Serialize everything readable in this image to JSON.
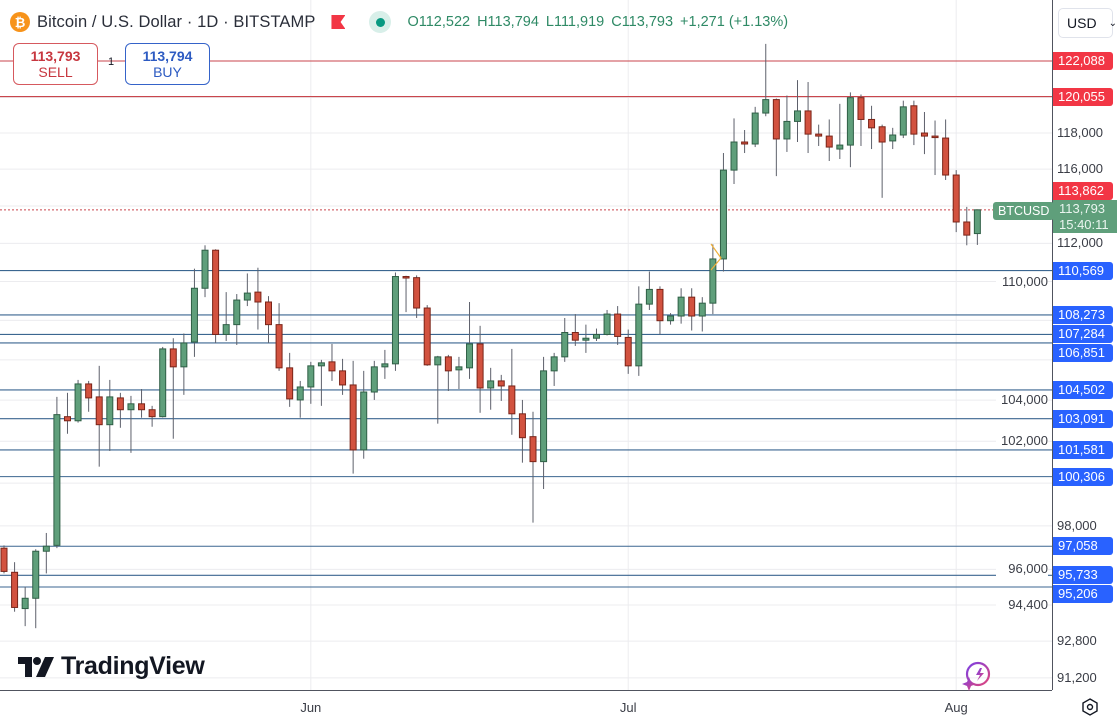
{
  "header": {
    "coin_icon": "bitcoin-icon",
    "title": "Bitcoin / U.S. Dollar · 1D · BITSTAMP",
    "open": "O112,522",
    "high": "H113,794",
    "low": "L111,919",
    "close": "C113,793",
    "change": "+1,271 (+1.13%)"
  },
  "trade": {
    "sell_price": "113,793",
    "sell_label": "SELL",
    "buy_price": "113,794",
    "buy_label": "BUY",
    "quantity": "1"
  },
  "currency": "USD",
  "watermark": "TradingView",
  "colors": {
    "up": "#5f9f7b",
    "up_border": "#2f5f46",
    "down": "#d2523f",
    "down_border": "#7a2418",
    "resistance": "#f23645",
    "resistance_line": "#c9464c",
    "support": "#2962ff",
    "support_line": "#3b6690",
    "current": "#5f9f7b"
  },
  "chart_data": {
    "type": "candlestick",
    "symbol": "BTCUSD",
    "interval": "1D",
    "ohlc": [
      [
        96970,
        97100,
        95820,
        95910
      ],
      [
        95870,
        96330,
        94100,
        94290
      ],
      [
        94240,
        95210,
        93460,
        94700
      ],
      [
        94700,
        96920,
        93370,
        96830
      ],
      [
        96830,
        97670,
        95820,
        97060
      ],
      [
        97100,
        104160,
        96970,
        103290
      ],
      [
        103190,
        104360,
        102360,
        102990
      ],
      [
        102990,
        105000,
        102900,
        104800
      ],
      [
        104800,
        104950,
        103430,
        104110
      ],
      [
        104160,
        105700,
        100780,
        102800
      ],
      [
        102800,
        105000,
        101530,
        104160
      ],
      [
        104110,
        104360,
        102650,
        103530
      ],
      [
        103530,
        104210,
        101440,
        103820
      ],
      [
        103820,
        104550,
        103140,
        103530
      ],
      [
        103530,
        103720,
        102700,
        103190
      ],
      [
        103190,
        106650,
        103150,
        106550
      ],
      [
        106550,
        107090,
        102120,
        105650
      ],
      [
        105650,
        107330,
        104260,
        106850
      ],
      [
        106900,
        110670,
        106150,
        109650
      ],
      [
        109650,
        111900,
        109190,
        111640
      ],
      [
        111640,
        111690,
        106850,
        107280
      ],
      [
        107280,
        109450,
        106950,
        107780
      ],
      [
        107780,
        109350,
        106750,
        109040
      ],
      [
        109040,
        110420,
        108730,
        109400
      ],
      [
        109450,
        110720,
        107530,
        108940
      ],
      [
        108940,
        109240,
        106850,
        107780
      ],
      [
        107780,
        108880,
        105450,
        105600
      ],
      [
        105600,
        106350,
        103670,
        104060
      ],
      [
        104010,
        104950,
        103140,
        104650
      ],
      [
        104650,
        105900,
        103820,
        105700
      ],
      [
        105700,
        106000,
        103720,
        105850
      ],
      [
        105900,
        106800,
        104950,
        105450
      ],
      [
        105450,
        106050,
        104260,
        104750
      ],
      [
        104750,
        105950,
        100450,
        101580
      ],
      [
        101580,
        105450,
        101160,
        104400
      ],
      [
        104400,
        105950,
        104010,
        105650
      ],
      [
        105650,
        106500,
        105050,
        105800
      ],
      [
        105800,
        110470,
        105450,
        110260
      ],
      [
        110260,
        110300,
        108420,
        110200
      ],
      [
        110200,
        110320,
        108120,
        108630
      ],
      [
        108630,
        108780,
        105700,
        105750
      ],
      [
        105750,
        106200,
        102850,
        106150
      ],
      [
        106150,
        106250,
        104450,
        105450
      ],
      [
        105500,
        106150,
        104550,
        105650
      ],
      [
        105600,
        108940,
        105050,
        106800
      ],
      [
        106800,
        107720,
        103380,
        104600
      ],
      [
        104600,
        105600,
        103530,
        104950
      ],
      [
        104950,
        105250,
        103960,
        104700
      ],
      [
        104700,
        106550,
        102310,
        103330
      ],
      [
        103330,
        104010,
        100970,
        102170
      ],
      [
        102220,
        103430,
        98150,
        101020
      ],
      [
        101020,
        106150,
        99720,
        105450
      ],
      [
        105450,
        106350,
        104700,
        106150
      ],
      [
        106150,
        108120,
        105900,
        107380
      ],
      [
        107380,
        108320,
        106700,
        106990
      ],
      [
        106990,
        107780,
        106350,
        107090
      ],
      [
        107090,
        107580,
        106950,
        107280
      ],
      [
        107280,
        108530,
        107230,
        108320
      ],
      [
        108320,
        108730,
        106750,
        107180
      ],
      [
        107130,
        107530,
        105300,
        105700
      ],
      [
        105700,
        109750,
        105200,
        108830
      ],
      [
        108830,
        110520,
        108530,
        109590
      ],
      [
        109590,
        109750,
        107280,
        107980
      ],
      [
        107980,
        108370,
        107780,
        108220
      ],
      [
        108220,
        109650,
        107830,
        109190
      ],
      [
        109190,
        109650,
        107480,
        108220
      ],
      [
        108220,
        109190,
        107430,
        108880
      ],
      [
        108880,
        111950,
        108320,
        111180
      ],
      [
        111180,
        116890,
        110520,
        115950
      ],
      [
        115950,
        118820,
        115190,
        117500
      ],
      [
        117500,
        118170,
        116890,
        117390
      ],
      [
        117390,
        119470,
        117220,
        119120
      ],
      [
        119120,
        123080,
        118940,
        119880
      ],
      [
        119880,
        119940,
        115620,
        117670
      ],
      [
        117670,
        120110,
        116950,
        118650
      ],
      [
        118650,
        120990,
        117500,
        119240
      ],
      [
        119240,
        120880,
        116890,
        117940
      ],
      [
        117940,
        118470,
        117280,
        117830
      ],
      [
        117830,
        118760,
        116450,
        117220
      ],
      [
        117110,
        119640,
        116560,
        117330
      ],
      [
        117330,
        120290,
        116110,
        119990
      ],
      [
        119990,
        120170,
        117280,
        118760
      ],
      [
        118760,
        119530,
        117110,
        118290
      ],
      [
        118350,
        118470,
        114440,
        117500
      ],
      [
        117560,
        118290,
        117110,
        117890
      ],
      [
        117890,
        119820,
        117720,
        119470
      ],
      [
        119530,
        119820,
        117330,
        117940
      ],
      [
        118000,
        119180,
        116830,
        117830
      ],
      [
        117830,
        118700,
        115680,
        117780
      ],
      [
        117720,
        118760,
        115410,
        115680
      ],
      [
        115680,
        115950,
        112600,
        113140
      ],
      [
        113140,
        113950,
        111900,
        112440
      ],
      [
        112522,
        113794,
        111919,
        113793
      ]
    ],
    "y_ticks": [
      {
        "value": 118000,
        "label": "118,000"
      },
      {
        "value": 116000,
        "label": "116,000"
      },
      {
        "value": 112000,
        "label": "112,000"
      },
      {
        "value": 110000,
        "label": "110,000"
      },
      {
        "value": 104000,
        "label": "104,000"
      },
      {
        "value": 102000,
        "label": "102,000"
      },
      {
        "value": 98000,
        "label": "98,000"
      },
      {
        "value": 96000,
        "label": "96,000"
      },
      {
        "value": 94400,
        "label": "94,400"
      },
      {
        "value": 92800,
        "label": "92,800"
      },
      {
        "value": 91200,
        "label": "91,200"
      }
    ],
    "x_ticks": [
      {
        "candle_index": 29,
        "label": "Jun"
      },
      {
        "candle_index": 59,
        "label": "Jul"
      },
      {
        "candle_index": 90,
        "label": "Aug"
      }
    ],
    "levels": [
      {
        "value": 122088,
        "label": "122,088",
        "kind": "resistance"
      },
      {
        "value": 120055,
        "label": "120,055",
        "kind": "resistance"
      },
      {
        "value": 110569,
        "label": "110,569",
        "kind": "support"
      },
      {
        "value": 108273,
        "label": "108,273",
        "kind": "support"
      },
      {
        "value": 107284,
        "label": "107,284",
        "kind": "support"
      },
      {
        "value": 106851,
        "label": "106,851",
        "kind": "support"
      },
      {
        "value": 104502,
        "label": "104,502",
        "kind": "support"
      },
      {
        "value": 103091,
        "label": "103,091",
        "kind": "support"
      },
      {
        "value": 101581,
        "label": "101,581",
        "kind": "support"
      },
      {
        "value": 100306,
        "label": "100,306",
        "kind": "support"
      },
      {
        "value": 97058,
        "label": "97,058",
        "kind": "support"
      },
      {
        "value": 95733,
        "label": "95,733",
        "kind": "support"
      },
      {
        "value": 95206,
        "label": "95,206",
        "kind": "support"
      }
    ],
    "high_marker": {
      "value": 113862,
      "label": "113,862"
    },
    "current_price": {
      "value": 113793,
      "label": "113,793",
      "countdown": "15:40:11",
      "symbol_tag": "BTCUSD"
    }
  }
}
